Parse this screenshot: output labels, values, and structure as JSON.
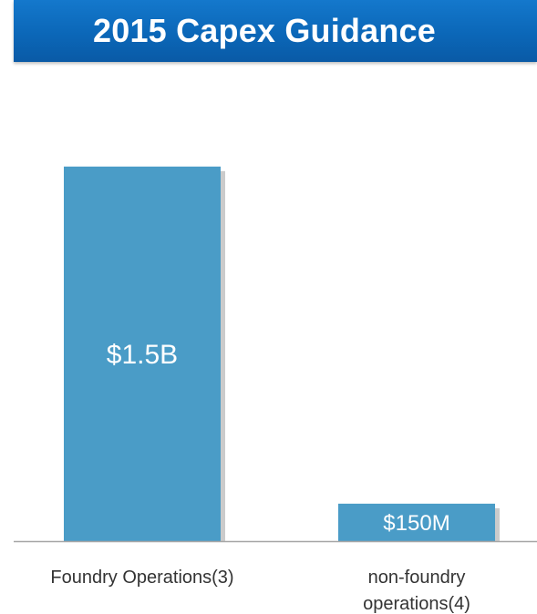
{
  "title": "2015 Capex Guidance",
  "colors": {
    "banner": "#0b67b8",
    "bar": "#4a9cc7",
    "bar_shadow": "#a9a9a9",
    "axis": "#a6a6a6",
    "title_text": "#ffffff"
  },
  "chart_data": {
    "type": "bar",
    "title": "2015 Capex Guidance",
    "categories": [
      "Foundry Operations(3)",
      "non-foundry operations(4)"
    ],
    "category_lines": [
      [
        "Foundry Operations(3)"
      ],
      [
        "non-foundry",
        "operations(4)"
      ]
    ],
    "values": [
      1500,
      150
    ],
    "value_unit": "$M",
    "data_labels": [
      "$1.5B",
      "$150M"
    ],
    "xlabel": "",
    "ylabel": "",
    "ylim": [
      0,
      1700
    ],
    "grid": false,
    "legend": "none"
  }
}
